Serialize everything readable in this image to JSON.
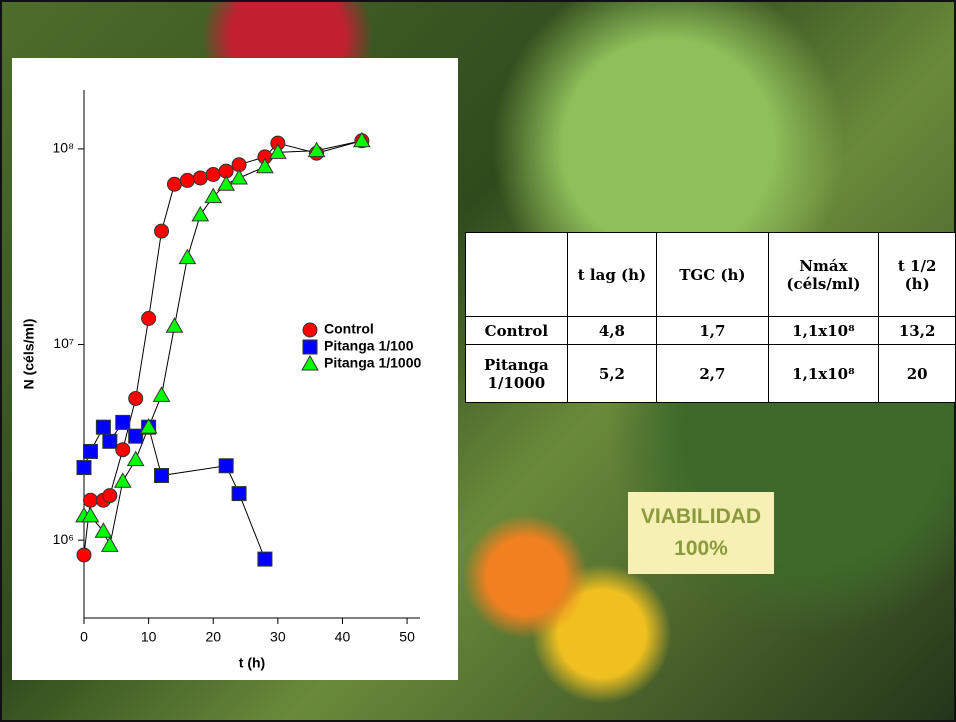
{
  "chart_data": {
    "type": "scatter",
    "log_y": true,
    "x_label": "t (h)",
    "y_label": "N (céls/ml)",
    "xlim": [
      0,
      52
    ],
    "xticks": [
      0,
      10,
      20,
      30,
      40,
      50
    ],
    "ylim": [
      400000,
      200000000
    ],
    "yticks": [
      {
        "value": 1000000,
        "label": "10⁶"
      },
      {
        "value": 10000000,
        "label": "10⁷"
      },
      {
        "value": 100000000,
        "label": "10⁸"
      }
    ],
    "legend": "right",
    "series": [
      {
        "name": "Control",
        "color": "#ff0000",
        "marker": "circle",
        "x": [
          0,
          1,
          3,
          4,
          6,
          8,
          10,
          12,
          14,
          16,
          18,
          20,
          22,
          24,
          28,
          30,
          36,
          43
        ],
        "values": [
          840000,
          1600000,
          1600000,
          1690000,
          2900000,
          5300000,
          13600000,
          38000000,
          66000000,
          69000000,
          71000000,
          74000000,
          77000000,
          83000000,
          91000000,
          107000000,
          95000000,
          110000000
        ]
      },
      {
        "name": "Pitanga 1/100",
        "color": "#0000ff",
        "marker": "square",
        "x": [
          0,
          1,
          3,
          4,
          6,
          8,
          10,
          12,
          22,
          24,
          28
        ],
        "values": [
          2350000,
          2840000,
          3780000,
          3200000,
          4000000,
          3400000,
          3780000,
          2140000,
          2400000,
          1730000,
          800000
        ]
      },
      {
        "name": "Pitanga 1/1000",
        "color": "#00ff00",
        "marker": "triangle",
        "x": [
          0,
          1,
          3,
          4,
          6,
          8,
          10,
          12,
          14,
          16,
          18,
          20,
          22,
          24,
          28,
          30,
          36,
          43
        ],
        "values": [
          1330000,
          1330000,
          1110000,
          940000,
          2000000,
          2580000,
          3780000,
          5500000,
          12400000,
          27800000,
          46000000,
          57000000,
          66000000,
          71000000,
          81000000,
          96000000,
          98000000,
          110000000
        ]
      }
    ]
  },
  "table": {
    "columns": [
      "t lag (h)",
      "TGC (h)",
      "Nmáx (céls/ml)",
      "t 1/2 (h)"
    ],
    "rows": [
      [
        "Control",
        "4,8",
        "1,7",
        "1,1x10⁸",
        "13,2"
      ],
      [
        "Pitanga 1/1000",
        "5,2",
        "2,7",
        "1,1x10⁸",
        "20"
      ]
    ]
  },
  "badge": {
    "lines": [
      "VIABILIDAD",
      "100%"
    ]
  }
}
